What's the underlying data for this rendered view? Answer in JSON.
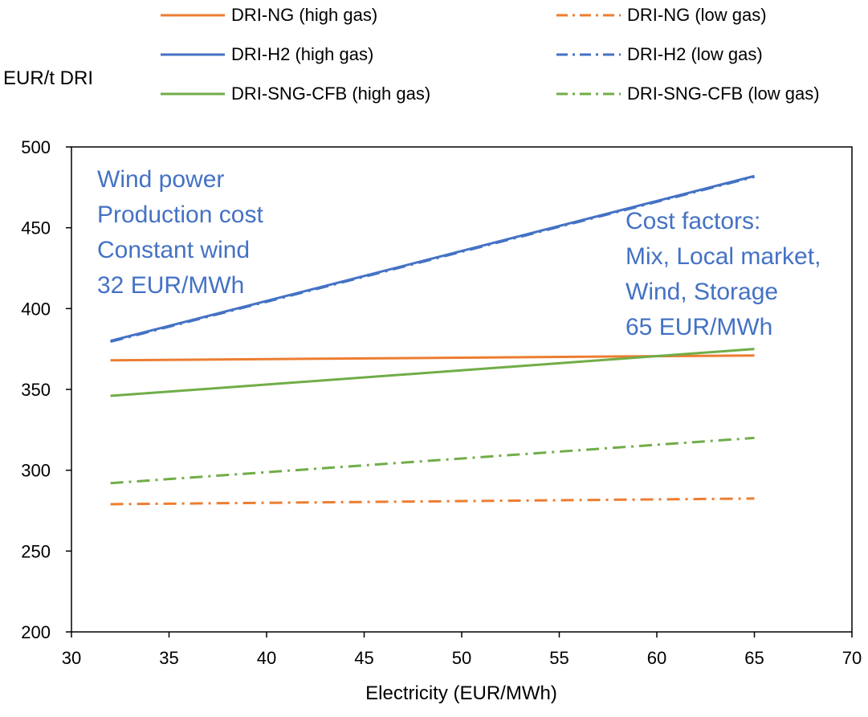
{
  "chart_data": {
    "type": "line",
    "title": "",
    "xlabel": "Electricity (EUR/MWh)",
    "ylabel": "EUR/t DRI",
    "xlim": [
      30,
      70
    ],
    "ylim": [
      200,
      500
    ],
    "xticks": [
      30,
      35,
      40,
      45,
      50,
      55,
      60,
      65,
      70
    ],
    "yticks": [
      200,
      250,
      300,
      350,
      400,
      450,
      500
    ],
    "grid": false,
    "legend_position": "top",
    "series": [
      {
        "name": "DRI-NG (high gas)",
        "color": "#ED7D31",
        "dash": "solid",
        "x": [
          32,
          65
        ],
        "y": [
          368,
          371
        ]
      },
      {
        "name": "DRI-NG (low gas)",
        "color": "#ED7D31",
        "dash": "dashdot",
        "x": [
          32,
          65
        ],
        "y": [
          279,
          282.5
        ]
      },
      {
        "name": "DRI-H2 (high gas)",
        "color": "#4472C4",
        "dash": "solid",
        "x": [
          32,
          65
        ],
        "y": [
          380,
          482
        ]
      },
      {
        "name": "DRI-H2 (low gas)",
        "color": "#4472C4",
        "dash": "dashdot",
        "x": [
          32,
          65
        ],
        "y": [
          379.5,
          481.5
        ]
      },
      {
        "name": "DRI-SNG-CFB (high gas)",
        "color": "#70AD47",
        "dash": "solid",
        "x": [
          32,
          65
        ],
        "y": [
          346,
          375
        ]
      },
      {
        "name": "DRI-SNG-CFB (low gas)",
        "color": "#70AD47",
        "dash": "dashdot",
        "x": [
          32,
          65
        ],
        "y": [
          292,
          320
        ]
      }
    ],
    "annotations": {
      "left": [
        "Wind power",
        "Production cost",
        "Constant wind",
        "32 EUR/MWh"
      ],
      "right": [
        "Cost factors:",
        "Mix, Local market,",
        "Wind, Storage",
        "65 EUR/MWh"
      ]
    },
    "annotation_color": "#4472C4"
  }
}
